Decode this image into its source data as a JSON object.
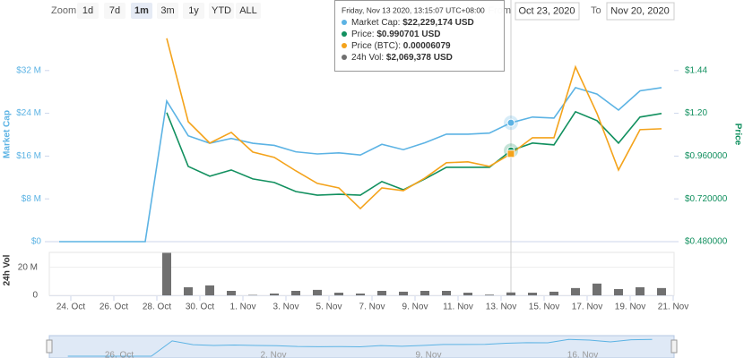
{
  "toolbar": {
    "zoom": "Zoom",
    "buttons": [
      "1d",
      "7d",
      "1m",
      "3m",
      "1y",
      "YTD",
      "ALL"
    ],
    "selected": 2,
    "from": "From",
    "from_date": "Oct 23, 2020",
    "to": "To",
    "to_date": "Nov 20, 2020"
  },
  "tooltip": {
    "index": 21,
    "header": "Friday, Nov 13 2020, 13:15:07 UTC+08:00",
    "rows": [
      {
        "label": "Market Cap: ",
        "value": "$22,229,174 USD"
      },
      {
        "label": "Price: ",
        "value": "$0.990701 USD"
      },
      {
        "label": "Price (BTC): ",
        "value": "0.00006079"
      },
      {
        "label": "24h Vol: ",
        "value": "$2,069,378 USD"
      }
    ]
  },
  "navigator": {
    "labels": [
      "26. Oct",
      "2. Nov",
      "9. Nov",
      "16. Nov"
    ]
  },
  "chart_data": {
    "type": "line",
    "categories": [
      null,
      "24. Oct",
      null,
      "26. Oct",
      null,
      "28. Oct",
      null,
      "30. Oct",
      null,
      "1. Nov",
      null,
      "3. Nov",
      null,
      "5. Nov",
      null,
      "7. Nov",
      null,
      "9. Nov",
      null,
      "11. Nov",
      null,
      "13. Nov",
      null,
      "15. Nov",
      null,
      "17. Nov",
      null,
      "19. Nov",
      null,
      "21. Nov"
    ],
    "ylabel": "Market Cap",
    "y2label": "Price",
    "vlabel": "24h Vol",
    "ylim": [
      0,
      40000000
    ],
    "yticks": [
      {
        "value": 0,
        "label": "$0"
      },
      {
        "value": 8000000,
        "label": "$8 M"
      },
      {
        "value": 16000000,
        "label": "$16 M"
      },
      {
        "value": 24000000,
        "label": "$24 M"
      },
      {
        "value": 32000000,
        "label": "$32 M"
      }
    ],
    "y2lim": [
      0.48,
      1.68
    ],
    "y2ticks": [
      {
        "value": 0.48,
        "label": "$0.480000"
      },
      {
        "value": 0.72,
        "label": "$0.720000"
      },
      {
        "value": 0.96,
        "label": "$0.960000"
      },
      {
        "value": 1.2,
        "label": "$1.20"
      },
      {
        "value": 1.44,
        "label": "$1.44"
      }
    ],
    "y3lim": [
      0,
      0.000148
    ],
    "vlim": [
      0,
      30000000
    ],
    "vticks": [
      0,
      {
        "value": 20000000,
        "label": "20 M"
      }
    ],
    "series": [
      {
        "name": "Market Cap",
        "color": "#5cb3e4",
        "axis": "y",
        "values": [
          0,
          0,
          0,
          0,
          0,
          26300000,
          19800000,
          18400000,
          19300000,
          18400000,
          18000000,
          16800000,
          16400000,
          16600000,
          16200000,
          18200000,
          17200000,
          18500000,
          20100000,
          20100000,
          20300000,
          22229174,
          23300000,
          23100000,
          28800000,
          27600000,
          24600000,
          28200000,
          28800000,
          null
        ]
      },
      {
        "name": "Price",
        "color": "#12905f",
        "axis": "y2",
        "values": [
          null,
          null,
          null,
          null,
          null,
          1.204,
          0.902,
          0.847,
          0.882,
          0.832,
          0.812,
          0.761,
          0.741,
          0.746,
          0.741,
          0.817,
          0.771,
          0.832,
          0.897,
          0.897,
          0.897,
          0.990701,
          1.033,
          1.023,
          1.209,
          1.159,
          1.033,
          1.179,
          1.199,
          null
        ]
      },
      {
        "name": "Price (BTC)",
        "color": "#f4a31b",
        "axis": "y3",
        "values": [
          null,
          null,
          null,
          null,
          null,
          0.0001407,
          8.3e-05,
          6.82e-05,
          7.56e-05,
          6.2e-05,
          5.83e-05,
          4.9e-05,
          4.03e-05,
          3.72e-05,
          2.29e-05,
          3.72e-05,
          3.53e-05,
          4.4e-05,
          5.46e-05,
          5.52e-05,
          5.21e-05,
          6.079e-05,
          7.19e-05,
          7.19e-05,
          0.0001209,
          8.87e-05,
          4.96e-05,
          7.75e-05,
          7.81e-05,
          null
        ]
      },
      {
        "name": "24h Vol",
        "color": "#707070",
        "axis": "v",
        "type": "column",
        "values": [
          null,
          null,
          null,
          null,
          null,
          30300000,
          5800000,
          7100000,
          3200000,
          300000,
          1300000,
          3200000,
          3900000,
          1900000,
          1300000,
          3200000,
          2600000,
          3200000,
          3200000,
          1900000,
          500000,
          2069378,
          1900000,
          2600000,
          5200000,
          8400000,
          4500000,
          5800000,
          5200000,
          null
        ]
      }
    ]
  }
}
